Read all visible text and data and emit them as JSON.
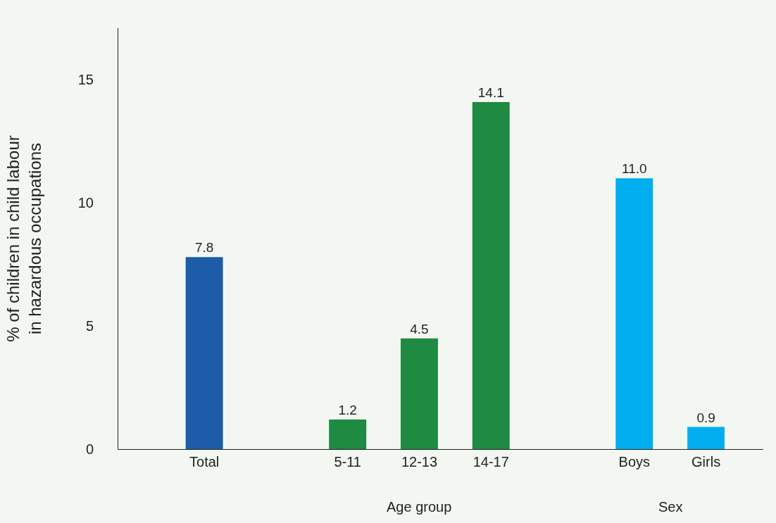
{
  "chart_data": {
    "type": "bar",
    "ylabel": "% of children in child labour\nin hazardous occupations",
    "categories": [
      "Total",
      null,
      "5-11",
      "12-13",
      "14-17",
      null,
      "Boys",
      "Girls"
    ],
    "values": [
      7.8,
      null,
      1.2,
      4.5,
      14.1,
      null,
      11.0,
      0.9
    ],
    "value_labels": [
      "7.8",
      null,
      "1.2",
      "4.5",
      "14.1",
      null,
      "11.0",
      "0.9"
    ],
    "colors": [
      "#1c5ca8",
      "#1c5ca8",
      "#1e8a42",
      "#1e8a42",
      "#1e8a42",
      "#00aeef",
      "#00aeef",
      "#00aeef"
    ],
    "ylim": [
      0,
      17.1
    ],
    "yticks": [
      0,
      5,
      10,
      15
    ],
    "grid": false,
    "annotations": [
      "Age group",
      "Sex"
    ]
  }
}
